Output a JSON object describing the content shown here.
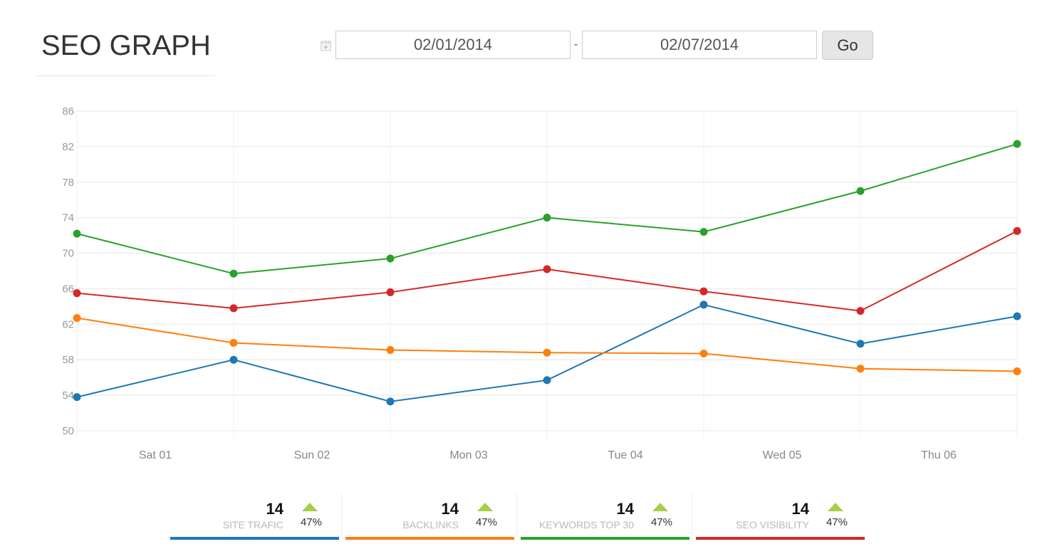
{
  "header": {
    "title": "SEO GRAPH",
    "calendar_icon": "calendar-icon",
    "date_from": "02/01/2014",
    "date_separator": "-",
    "date_to": "02/07/2014",
    "go_label": "Go"
  },
  "chart_data": {
    "type": "line",
    "title": "",
    "xlabel": "",
    "ylabel": "",
    "ylim": [
      50,
      86
    ],
    "yticks": [
      "86",
      "82",
      "78",
      "74",
      "70",
      "66",
      "62",
      "58",
      "54",
      "50"
    ],
    "ytick_values": [
      86,
      82,
      78,
      74,
      70,
      66,
      62,
      58,
      54,
      50
    ],
    "xtick_labels": [
      "Sat 01",
      "Sun 02",
      "Mon 03",
      "Tue 04",
      "Wed 05",
      "Thu 06"
    ],
    "grid": true,
    "points_per_series": 7,
    "series": [
      {
        "name": "SITE TRAFIC",
        "color": "#1f77b4",
        "values": [
          53.8,
          58.0,
          53.3,
          55.7,
          64.2,
          59.8,
          62.9
        ]
      },
      {
        "name": "BACKLINKS",
        "color": "#ff7f0e",
        "values": [
          62.7,
          59.9,
          59.1,
          58.8,
          58.7,
          57.0,
          56.7
        ]
      },
      {
        "name": "KEYWORDS TOP 30",
        "color": "#2ca02c",
        "values": [
          72.2,
          67.7,
          69.4,
          74.0,
          72.4,
          77.0,
          82.3
        ]
      },
      {
        "name": "SEO VISIBILITY",
        "color": "#d62728",
        "values": [
          65.5,
          63.8,
          65.6,
          68.2,
          65.7,
          63.5,
          72.5
        ]
      }
    ]
  },
  "stats": [
    {
      "value": "14",
      "label": "SITE TRAFIC",
      "change": "47%",
      "trend_icon": "arrow-up-icon",
      "color": "#1f77b4"
    },
    {
      "value": "14",
      "label": "BACKLINKS",
      "change": "47%",
      "trend_icon": "arrow-up-icon",
      "color": "#ff7f0e"
    },
    {
      "value": "14",
      "label": "KEYWORDS TOP 30",
      "change": "47%",
      "trend_icon": "arrow-up-icon",
      "color": "#2ca02c"
    },
    {
      "value": "14",
      "label": "SEO VISIBILITY",
      "change": "47%",
      "trend_icon": "arrow-up-icon",
      "color": "#d62728"
    }
  ]
}
